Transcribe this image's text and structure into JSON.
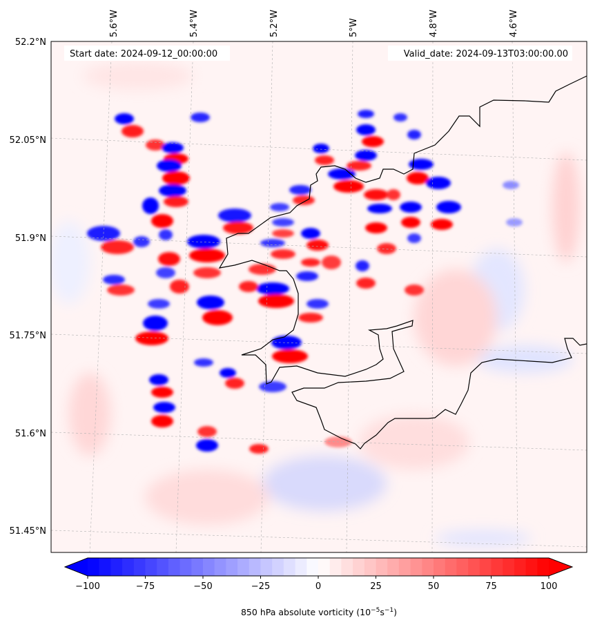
{
  "header": {
    "start_date": "Start date: 2024-09-12_00:00:00",
    "valid_date": "Valid_date: 2024-09-13T03:00:00.00"
  },
  "map": {
    "lon_labels": [
      "5.6°W",
      "5.4°W",
      "5.2°W",
      "5°W",
      "4.8°W",
      "4.6°W"
    ],
    "lat_labels": [
      "52.2°N",
      "52.05°N",
      "51.9°N",
      "51.75°N",
      "51.6°N",
      "51.45°N"
    ],
    "colors": {
      "coastline": "#000000",
      "grid": "#b0b0b0",
      "negative": "#0000ff",
      "positive": "#ff0000"
    },
    "field_name": "850 hPa absolute vorticity"
  },
  "colorbar": {
    "min": -100,
    "max": 100,
    "step": 5,
    "ticks": [
      "−100",
      "−75",
      "−50",
      "−25",
      "0",
      "25",
      "50",
      "75",
      "100"
    ],
    "label_main": "850 hPa absolute vorticity (10",
    "label_exp1": "−5",
    "label_mid": "s",
    "label_exp2": "−1",
    "label_end": ")"
  }
}
